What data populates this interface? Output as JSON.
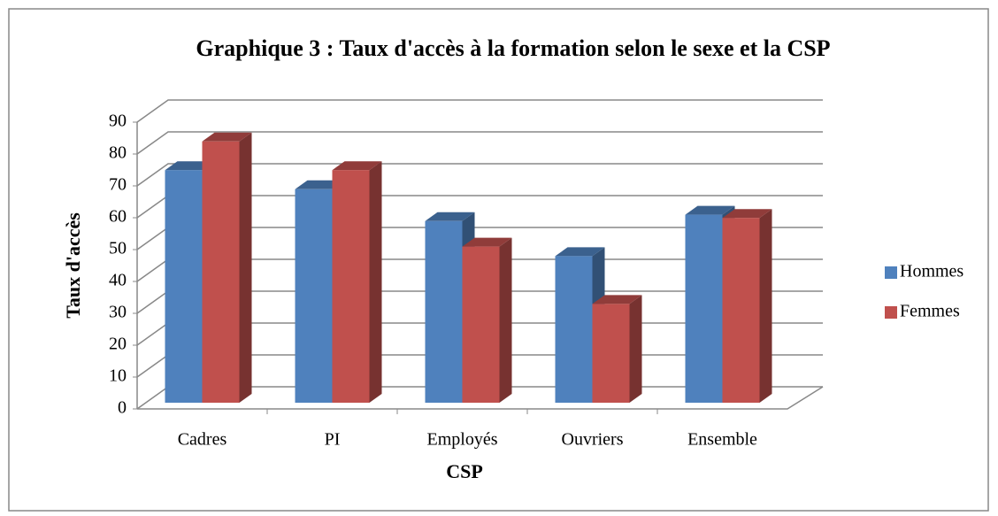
{
  "chart_data": {
    "type": "bar3d",
    "title": "Graphique 3 : Taux d'accès à la formation  selon le sexe et la CSP",
    "x_label": "CSP",
    "y_label": "Taux d'accès",
    "categories": [
      "Cadres",
      "PI",
      "Employés",
      "Ouvriers",
      "Ensemble"
    ],
    "series": [
      {
        "name": "Hommes",
        "color": "#4f81bd",
        "values": [
          73,
          67,
          57,
          46,
          59
        ]
      },
      {
        "name": "Femmes",
        "color": "#c0504d",
        "values": [
          82,
          73,
          49,
          31,
          58
        ]
      }
    ],
    "ylim": [
      0,
      90
    ],
    "yticks": [
      0,
      10,
      20,
      30,
      40,
      50,
      60,
      70,
      80,
      90
    ],
    "grid": true,
    "legend": "right"
  }
}
